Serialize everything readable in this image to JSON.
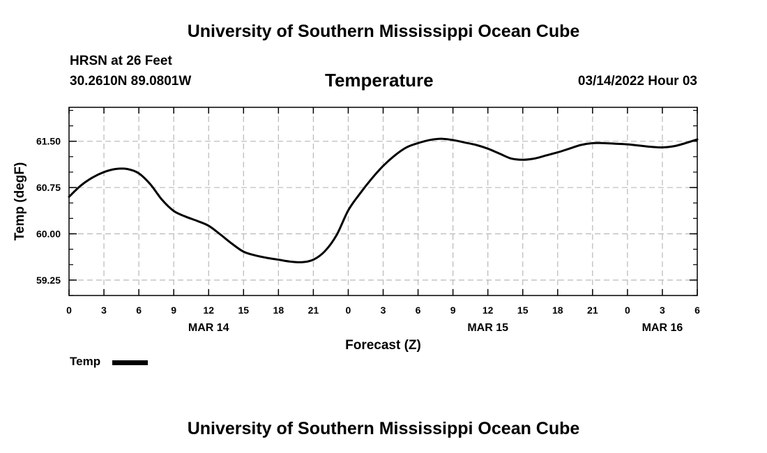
{
  "header": {
    "top_title": "University of Southern Mississippi Ocean Cube",
    "station": "HRSN at 26 Feet",
    "coords": "30.2610N  89.0801W",
    "chart_title": "Temperature",
    "datetime": "03/14/2022 Hour 03",
    "bottom_title": "University of Southern Mississippi Ocean Cube"
  },
  "legend": {
    "label": "Temp"
  },
  "chart_data": {
    "type": "line",
    "title": "Temperature",
    "xlabel": "Forecast (Z)",
    "ylabel": "Temp (degF)",
    "xlim": [
      0,
      54
    ],
    "ylim": [
      59.0,
      62.05
    ],
    "yticks": [
      "59.25",
      "60.00",
      "60.75",
      "61.50"
    ],
    "xtick_labels": [
      "0",
      "3",
      "6",
      "9",
      "12",
      "15",
      "18",
      "21",
      "0",
      "3",
      "6",
      "9",
      "12",
      "15",
      "18",
      "21",
      "0",
      "3",
      "6"
    ],
    "date_labels": [
      {
        "at": 12,
        "label": "MAR 14"
      },
      {
        "at": 36,
        "label": "MAR 15"
      },
      {
        "at": 51,
        "label": "MAR 16"
      }
    ],
    "grid": true,
    "legend_position": "bottom-left",
    "series": [
      {
        "name": "Temp",
        "x": [
          0,
          1,
          2,
          3,
          4,
          5,
          6,
          7,
          8,
          9,
          10,
          11,
          12,
          13,
          14,
          15,
          16,
          17,
          18,
          19,
          20,
          21,
          22,
          23,
          24,
          25,
          26,
          27,
          28,
          29,
          30,
          31,
          32,
          33,
          34,
          35,
          36,
          37,
          38,
          39,
          40,
          41,
          42,
          43,
          44,
          45,
          46,
          47,
          48,
          49,
          50,
          51,
          52,
          53,
          54
        ],
        "y": [
          60.6,
          60.78,
          60.91,
          61.0,
          61.05,
          61.05,
          60.98,
          60.8,
          60.55,
          60.37,
          60.28,
          60.21,
          60.13,
          59.99,
          59.84,
          59.71,
          59.65,
          59.61,
          59.58,
          59.55,
          59.54,
          59.58,
          59.72,
          59.98,
          60.38,
          60.65,
          60.89,
          61.1,
          61.27,
          61.4,
          61.47,
          61.52,
          61.54,
          61.52,
          61.48,
          61.44,
          61.38,
          61.3,
          61.22,
          61.2,
          61.22,
          61.27,
          61.32,
          61.38,
          61.44,
          61.47,
          61.47,
          61.46,
          61.45,
          61.43,
          61.41,
          61.4,
          61.42,
          61.47,
          61.53
        ]
      }
    ]
  }
}
